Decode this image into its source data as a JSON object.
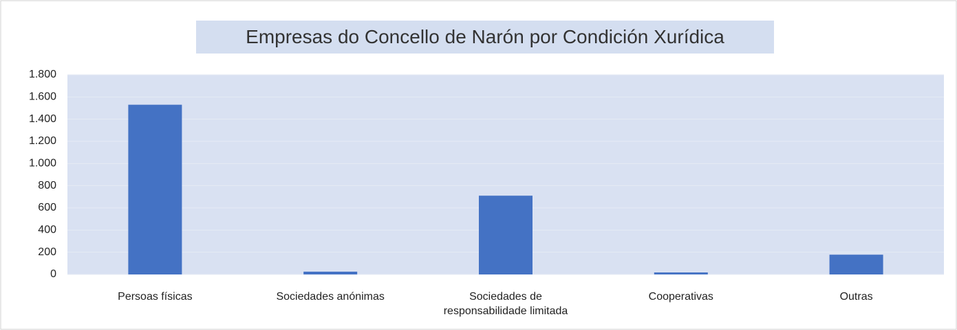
{
  "chart_data": {
    "type": "bar",
    "title": "Empresas do Concello de Narón por Condición Xurídica",
    "categories": [
      "Persoas físicas",
      "Sociedades anónimas",
      "Sociedades de responsabilidade limitada",
      "Cooperativas",
      "Outras"
    ],
    "values": [
      1530,
      25,
      710,
      18,
      178
    ],
    "color": "#4472c4",
    "ylim": [
      0,
      1800
    ],
    "yticks": [
      0,
      200,
      400,
      600,
      800,
      {
        "value": 1000,
        "label": "1.000"
      },
      {
        "value": 1200,
        "label": "1.200"
      },
      {
        "value": 1400,
        "label": "1.400"
      },
      {
        "value": 1600,
        "label": "1.600"
      },
      {
        "value": 1800,
        "label": "1.800"
      }
    ],
    "grid": true
  }
}
